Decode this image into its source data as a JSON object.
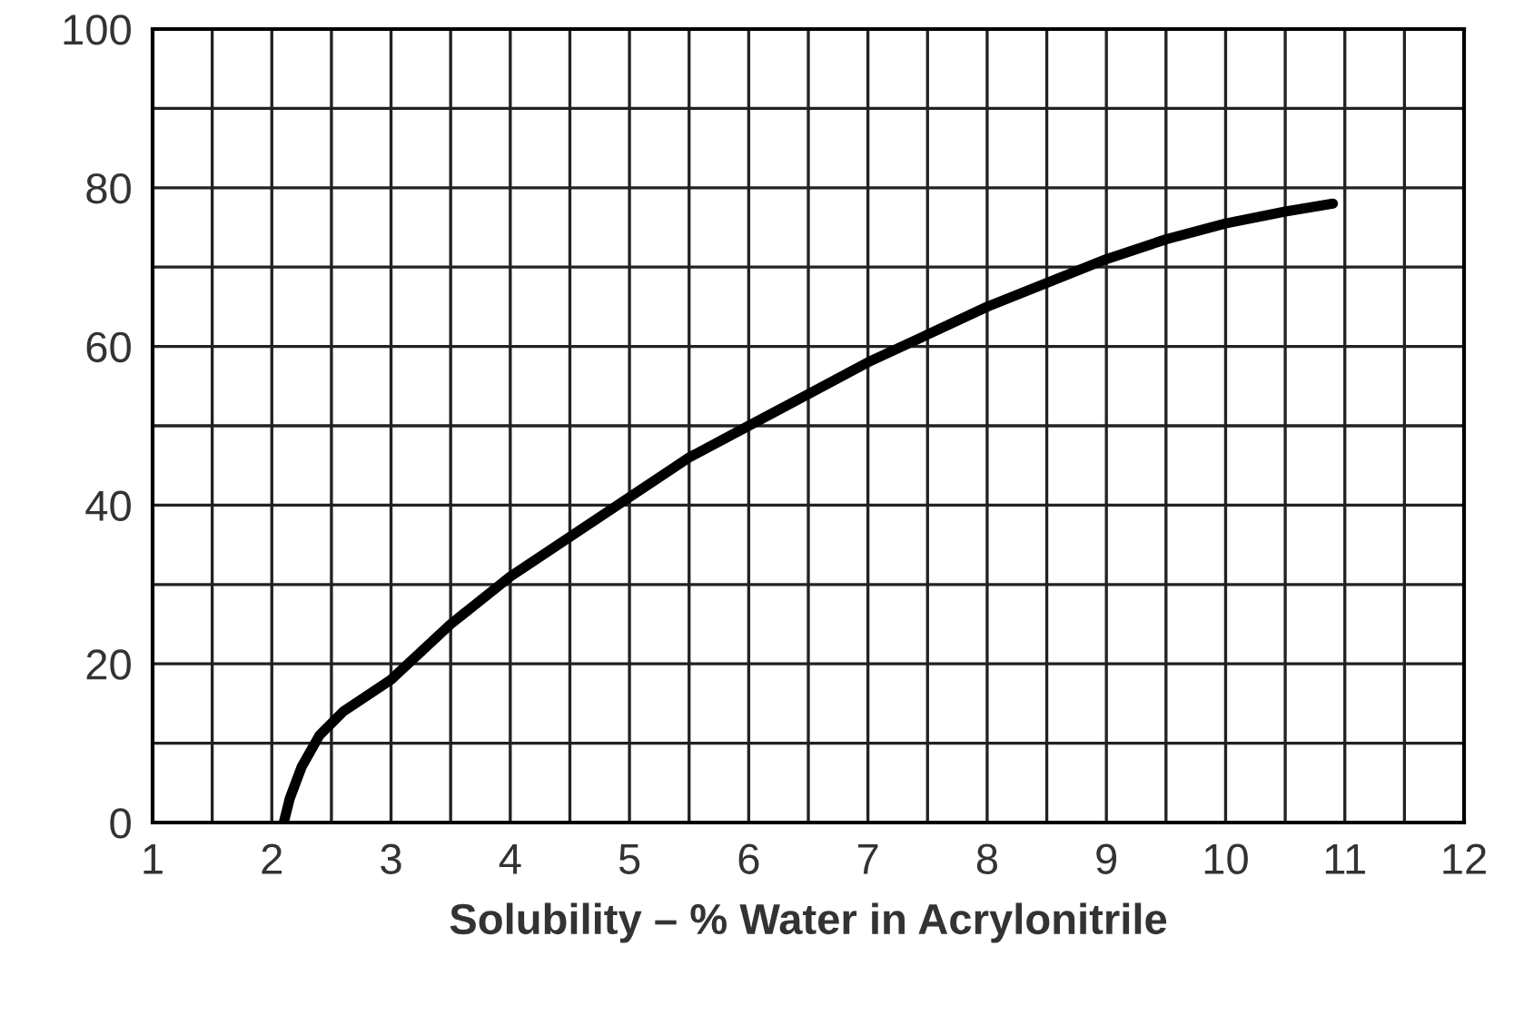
{
  "chart_data": {
    "type": "line",
    "xlabel": "Solubility – % Water in Acrylonitrile",
    "x": [
      2.1,
      2.15,
      2.25,
      2.4,
      2.6,
      3,
      3.5,
      4,
      4.5,
      5,
      5.5,
      6,
      6.5,
      7,
      7.5,
      8,
      8.5,
      9,
      9.5,
      10,
      10.5,
      10.9
    ],
    "series": [
      {
        "color": "#000000",
        "values": [
          0,
          3,
          7,
          11,
          14,
          18,
          25,
          31,
          36,
          41,
          46,
          50,
          54,
          58,
          61.5,
          65,
          68,
          71,
          73.5,
          75.5,
          77,
          78
        ]
      }
    ],
    "xlim": [
      1,
      12
    ],
    "xticks": [
      1,
      {
        "value": 1.5,
        "label": null
      },
      2,
      {
        "value": 2.5,
        "label": null
      },
      3,
      {
        "value": 3.5,
        "label": null
      },
      4,
      {
        "value": 4.5,
        "label": null
      },
      5,
      {
        "value": 5.5,
        "label": null
      },
      6,
      {
        "value": 6.5,
        "label": null
      },
      7,
      {
        "value": 7.5,
        "label": null
      },
      8,
      {
        "value": 8.5,
        "label": null
      },
      9,
      {
        "value": 9.5,
        "label": null
      },
      10,
      {
        "value": 10.5,
        "label": null
      },
      11,
      {
        "value": 11.5,
        "label": null
      },
      12
    ],
    "ylim": [
      0,
      100
    ],
    "yticks": [
      0,
      {
        "value": 10,
        "label": null
      },
      20,
      {
        "value": 30,
        "label": null
      },
      40,
      {
        "value": 50,
        "label": null
      },
      60,
      {
        "value": 70,
        "label": null
      },
      80,
      {
        "value": 90,
        "label": null
      },
      100
    ],
    "grid": true,
    "marker": "none",
    "line_style": "solid"
  }
}
